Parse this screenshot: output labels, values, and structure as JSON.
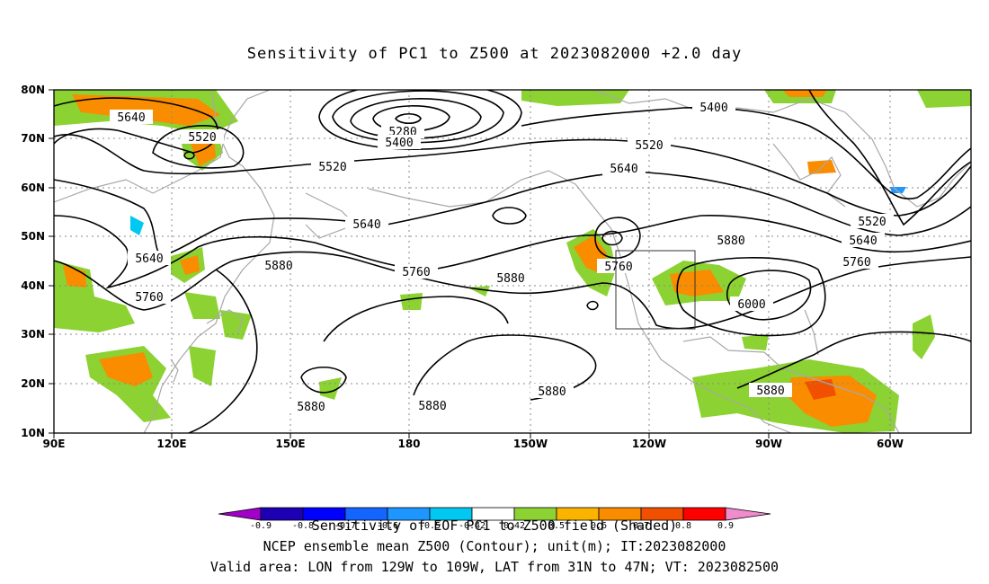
{
  "title": "Sensitivity of PC1 to Z500 at 2023082000 +2.0 day",
  "map": {
    "lon_labels": [
      "90E",
      "120E",
      "150E",
      "180",
      "150W",
      "120W",
      "90W",
      "60W"
    ],
    "lat_labels": [
      "10N",
      "20N",
      "30N",
      "40N",
      "50N",
      "60N",
      "70N",
      "80N"
    ],
    "contour_labels": [
      "5640",
      "5520",
      "5280",
      "5400",
      "5520",
      "5520",
      "5640",
      "5640",
      "5640",
      "5760",
      "5880",
      "5760",
      "5880",
      "5760",
      "5880",
      "6000",
      "5880",
      "5880",
      "5880",
      "5400",
      "5520",
      "5640",
      "5760"
    ],
    "valid_box": {
      "lon": [
        -129,
        -109
      ],
      "lat": [
        31,
        47
      ]
    }
  },
  "colorbar": {
    "ticks": [
      "-0.9",
      "-0.8",
      "-0.7",
      "-0.6",
      "-0.5",
      "-0.42",
      "0.42",
      "0.5",
      "0.6",
      "0.7",
      "0.8",
      "0.9"
    ],
    "colors": [
      "#a000c8",
      "#1e00b4",
      "#0000ff",
      "#1464ff",
      "#1e96ff",
      "#00c8f0",
      "#ffffff",
      "#8cd232",
      "#fab400",
      "#fa8c00",
      "#f05000",
      "#ff0000",
      "#f08ccc"
    ]
  },
  "caption": [
    "Sensitivity of EOF PC1 to Z500 field (Shaded)",
    "NCEP ensemble mean Z500 (Contour); unit(m); IT:2023082000",
    "Valid area: LON from 129W to 109W, LAT from 31N to 47N; VT: 2023082500"
  ]
}
